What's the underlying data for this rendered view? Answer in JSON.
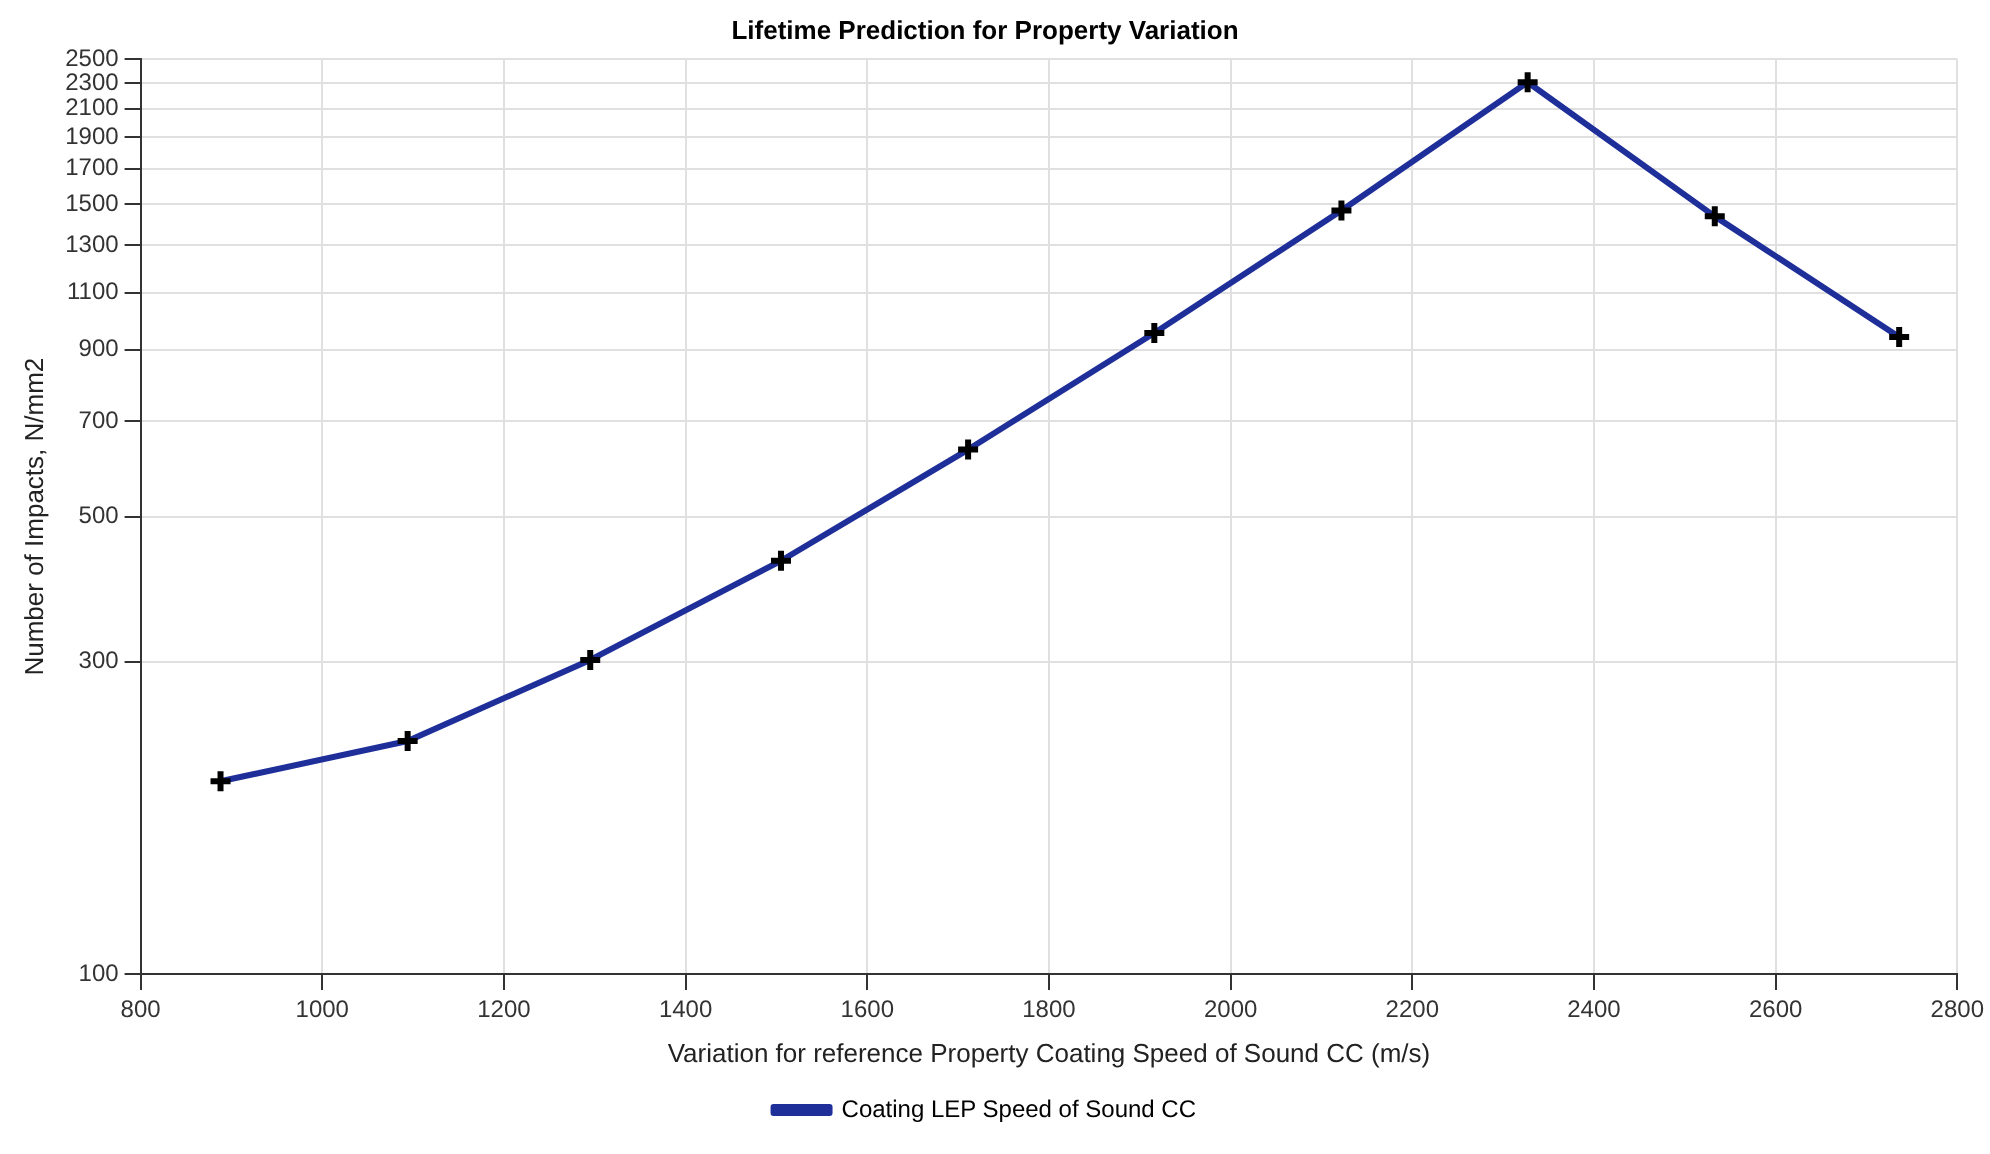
{
  "chart_data": {
    "type": "line",
    "title": "Lifetime Prediction for Property Variation",
    "xlabel": "Variation for reference Property Coating Speed of Sound CC (m/s)",
    "ylabel": "Number of Impacts, N/mm2",
    "x": [
      888,
      1094,
      1295,
      1505,
      1711,
      1916,
      2122,
      2327,
      2533,
      2736
    ],
    "series": [
      {
        "name": "Coating LEP Speed of Sound CC",
        "color": "#1f2f9a",
        "values": [
          197,
          227,
          302,
          428,
          633,
          954,
          1468,
          2305,
          1438,
          941
        ]
      }
    ],
    "xlim": [
      800,
      2800
    ],
    "xticks": [
      800,
      1000,
      1200,
      1400,
      1600,
      1800,
      2000,
      2200,
      2400,
      2600,
      2800
    ],
    "ylim": [
      100,
      2500
    ],
    "yticks": [
      100,
      300,
      500,
      700,
      900,
      1100,
      1300,
      1500,
      1700,
      1900,
      2100,
      2300,
      2500
    ],
    "log": "y",
    "grid": true,
    "legend": "bottom",
    "marker": "cross",
    "line_style": "solid"
  }
}
